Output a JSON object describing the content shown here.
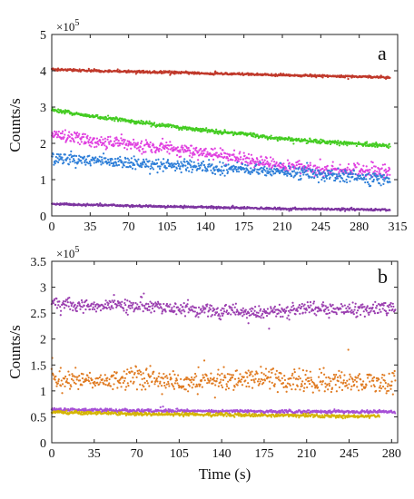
{
  "chart_data": [
    {
      "type": "scatter",
      "panel_label": "a",
      "ylabel": "Counts/s",
      "xlabel": "",
      "xlim": [
        0,
        315
      ],
      "ylim": [
        0,
        5
      ],
      "y_multiplier_label": "×10",
      "y_multiplier_exp": "5",
      "x_ticks": [
        "0",
        "35",
        "70",
        "105",
        "140",
        "175",
        "210",
        "245",
        "280",
        "315"
      ],
      "y_ticks": [
        "0",
        "1",
        "2",
        "3",
        "4",
        "5"
      ],
      "series": [
        {
          "color": "#c0392b",
          "x": [
            0,
            70,
            140,
            210,
            280,
            308
          ],
          "values": [
            4.03,
            3.98,
            3.93,
            3.88,
            3.84,
            3.82
          ],
          "noise": 0.03
        },
        {
          "color": "#44cc22",
          "x": [
            0,
            35,
            70,
            105,
            140,
            175,
            210,
            245,
            280,
            308
          ],
          "values": [
            2.92,
            2.75,
            2.62,
            2.48,
            2.35,
            2.25,
            2.12,
            2.05,
            1.98,
            1.93
          ],
          "noise": 0.05
        },
        {
          "color": "#e040e0",
          "x": [
            0,
            35,
            70,
            105,
            140,
            175,
            210,
            245,
            280,
            308
          ],
          "values": [
            2.25,
            2.08,
            1.98,
            1.86,
            1.73,
            1.56,
            1.4,
            1.3,
            1.25,
            1.22
          ],
          "noise": 0.16
        },
        {
          "color": "#2f7fd8",
          "x": [
            0,
            35,
            70,
            105,
            140,
            175,
            210,
            245,
            280,
            308
          ],
          "values": [
            1.6,
            1.55,
            1.45,
            1.4,
            1.34,
            1.28,
            1.22,
            1.14,
            1.06,
            1.02
          ],
          "noise": 0.15
        },
        {
          "color": "#7d35a0",
          "x": [
            0,
            70,
            140,
            210,
            280,
            308
          ],
          "values": [
            0.33,
            0.28,
            0.24,
            0.2,
            0.18,
            0.17
          ],
          "noise": 0.025
        }
      ]
    },
    {
      "type": "scatter",
      "panel_label": "b",
      "ylabel": "Counts/s",
      "xlabel": "Time (s)",
      "xlim": [
        0,
        285
      ],
      "ylim": [
        0,
        3.5
      ],
      "y_multiplier_label": "×10",
      "y_multiplier_exp": "5",
      "x_ticks": [
        "0",
        "35",
        "70",
        "105",
        "140",
        "175",
        "210",
        "245",
        "280"
      ],
      "y_ticks": [
        "0",
        "0.5",
        "1",
        "1.5",
        "2",
        "2.5",
        "3",
        "3.5"
      ],
      "series": [
        {
          "color": "#9b3fb0",
          "x": [
            0,
            35,
            70,
            105,
            140,
            175,
            210,
            245,
            283
          ],
          "values": [
            2.7,
            2.62,
            2.65,
            2.6,
            2.52,
            2.5,
            2.58,
            2.55,
            2.6
          ],
          "noise": 0.12
        },
        {
          "color": "#e07b22",
          "x": [
            0,
            35,
            70,
            105,
            140,
            175,
            210,
            245,
            283
          ],
          "values": [
            1.25,
            1.18,
            1.28,
            1.15,
            1.22,
            1.25,
            1.18,
            1.2,
            1.15
          ],
          "noise": 0.2
        },
        {
          "color": "#a64fd6",
          "x": [
            0,
            70,
            140,
            210,
            283
          ],
          "values": [
            0.64,
            0.62,
            0.61,
            0.6,
            0.6
          ],
          "noise": 0.03
        },
        {
          "color": "#d4b400",
          "x": [
            0,
            70,
            140,
            210,
            270
          ],
          "values": [
            0.59,
            0.56,
            0.54,
            0.52,
            0.51
          ],
          "noise": 0.03
        }
      ]
    }
  ]
}
